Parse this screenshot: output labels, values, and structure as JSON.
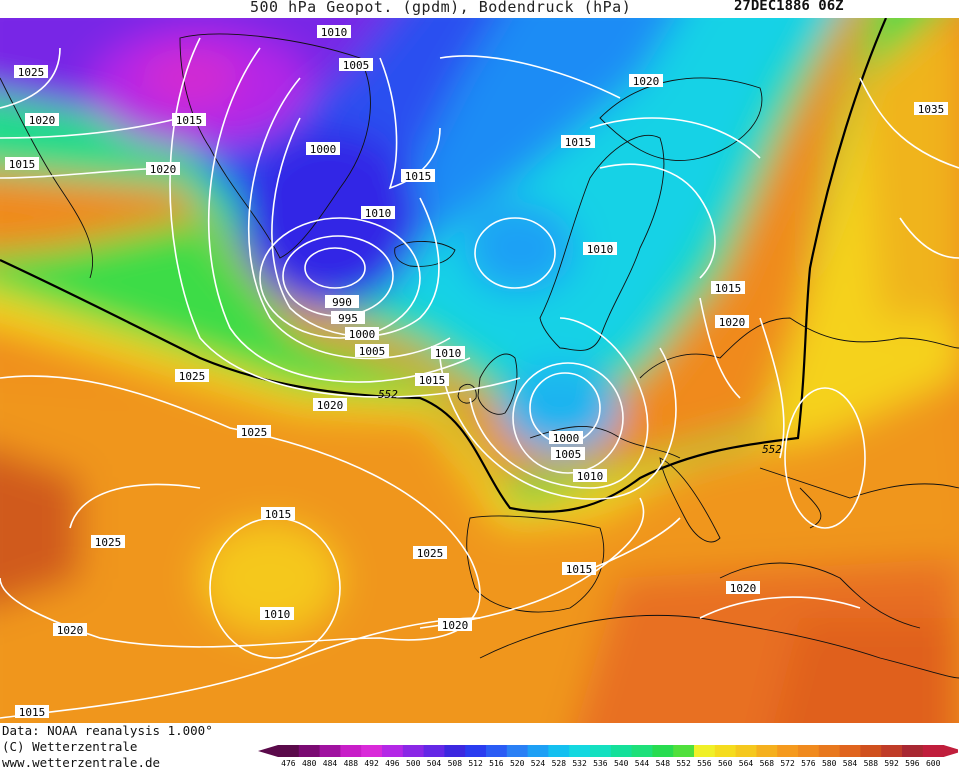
{
  "header": {
    "title": "500 hPa Geopot. (gpdm), Bodendruck (hPa)",
    "date": "27DEC1886 06Z"
  },
  "footer": {
    "data_source": "Data: NOAA reanalysis 1.000°",
    "copyright": "(C) Wetterzentrale",
    "website": "www.wetterzentrale.de"
  },
  "legend": {
    "values": [
      "476",
      "480",
      "484",
      "488",
      "492",
      "496",
      "500",
      "504",
      "508",
      "512",
      "516",
      "520",
      "524",
      "528",
      "532",
      "536",
      "540",
      "544",
      "548",
      "552",
      "556",
      "560",
      "564",
      "568",
      "572",
      "576",
      "580",
      "584",
      "588",
      "592",
      "596",
      "600"
    ],
    "colors": [
      "#5a0a4a",
      "#7a0a72",
      "#a012a0",
      "#c81ec8",
      "#d92ad9",
      "#b428e6",
      "#8a28e6",
      "#6428e6",
      "#3c28e0",
      "#2a3cf0",
      "#2a5cf5",
      "#2a80f5",
      "#1ea0f5",
      "#14c0f0",
      "#14d8e0",
      "#14e0c0",
      "#14e09a",
      "#1ee07a",
      "#28dc50",
      "#50e03c",
      "#f0f028",
      "#f5dc1e",
      "#f5c81e",
      "#f5b01e",
      "#f59a1e",
      "#f08a1e",
      "#e8781e",
      "#e0641e",
      "#d0501e",
      "#c03c28",
      "#a82832",
      "#c01e3c"
    ]
  },
  "isobar_labels": [
    "1010",
    "1005",
    "1000",
    "1015",
    "1010",
    "1025",
    "1020",
    "1015",
    "1020",
    "1015",
    "1020",
    "1015",
    "1010",
    "990",
    "995",
    "1000",
    "1005",
    "1010",
    "1015",
    "1025",
    "1020",
    "1025",
    "1025",
    "1015",
    "1010",
    "1025",
    "1020",
    "1020",
    "1015",
    "1000",
    "1005",
    "1010",
    "1015",
    "1020",
    "1020",
    "1020",
    "1035",
    "1020",
    "1015",
    "1025"
  ],
  "contour_label": "552"
}
